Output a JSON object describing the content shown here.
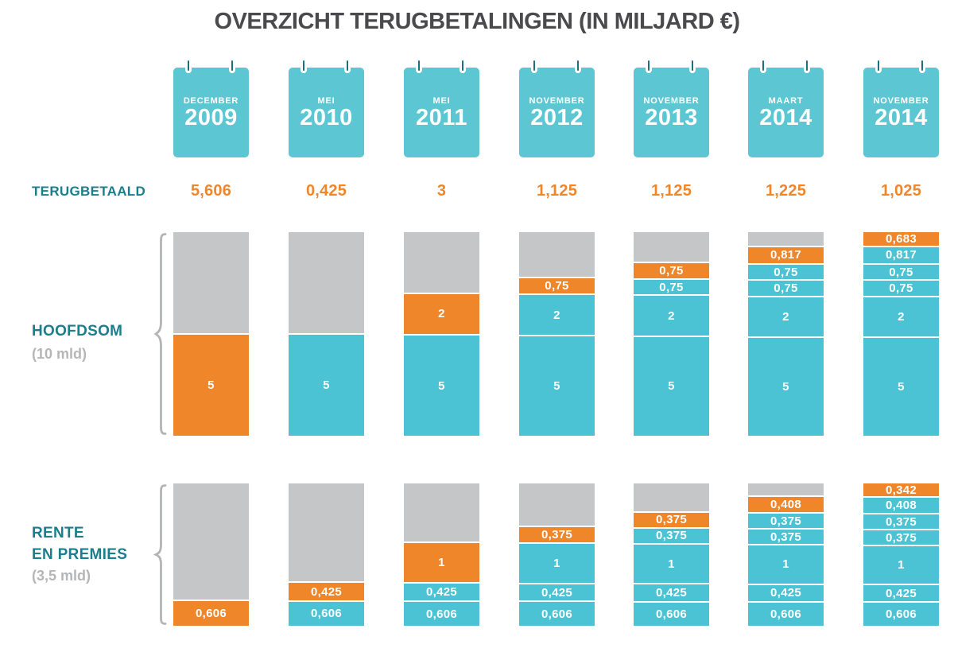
{
  "title": "OVERZICHT TERUGBETALINGEN (IN MILJARD €)",
  "labels": {
    "terugbetaald": "TERUGBETAALD",
    "hoofdsom": "HOOFDSOM",
    "hoofdsom_sub": "(10 mld)",
    "rente_line1": "RENTE",
    "rente_line2": "EN PREMIES",
    "rente_sub": "(3,5 mld)"
  },
  "colors": {
    "teal_bar": "#4bc3d5",
    "teal_calendar": "#5cc7d3",
    "teal_text": "#1b7e8e",
    "pin": "#19707f",
    "orange": "#f0862a",
    "gray_segment": "#c5c6c8",
    "gray_text": "#b5b6b8",
    "title_text": "#4a4a4c",
    "brace": "#b3b4b6"
  },
  "header": {
    "columns": [
      {
        "month": "DECEMBER",
        "year": "2009"
      },
      {
        "month": "MEI",
        "year": "2010"
      },
      {
        "month": "MEI",
        "year": "2011"
      },
      {
        "month": "NOVEMBER",
        "year": "2012"
      },
      {
        "month": "NOVEMBER",
        "year": "2013"
      },
      {
        "month": "MAART",
        "year": "2014"
      },
      {
        "month": "NOVEMBER",
        "year": "2014"
      }
    ]
  },
  "chart_data": [
    {
      "type": "bar",
      "title": "TERUGBETAALD (in miljard €)",
      "categories": [
        "DECEMBER 2009",
        "MEI 2010",
        "MEI 2011",
        "NOVEMBER 2012",
        "NOVEMBER 2013",
        "MAART 2014",
        "NOVEMBER 2014"
      ],
      "values": [
        5.606,
        0.425,
        3,
        1.125,
        1.125,
        1.225,
        1.025
      ],
      "values_text": [
        "5,606",
        "0,425",
        "3",
        "1,125",
        "1,125",
        "1,225",
        "1,025"
      ]
    },
    {
      "type": "bar",
      "stacked": true,
      "title": "HOOFDSOM (10 mld)",
      "total": 10,
      "ylim": [
        0,
        10
      ],
      "categories": [
        "DECEMBER 2009",
        "MEI 2010",
        "MEI 2011",
        "NOVEMBER 2012",
        "NOVEMBER 2013",
        "MAART 2014",
        "NOVEMBER 2014"
      ],
      "columns": [
        {
          "segments": [
            {
              "value": 5,
              "color": "gray",
              "label": ""
            },
            {
              "value": 5,
              "color": "orange",
              "label": "5"
            }
          ]
        },
        {
          "segments": [
            {
              "value": 5,
              "color": "gray",
              "label": ""
            },
            {
              "value": 5,
              "color": "teal",
              "label": "5"
            }
          ]
        },
        {
          "segments": [
            {
              "value": 3,
              "color": "gray",
              "label": ""
            },
            {
              "value": 2,
              "color": "orange",
              "label": "2"
            },
            {
              "value": 5,
              "color": "teal",
              "label": "5"
            }
          ]
        },
        {
          "segments": [
            {
              "value": 2.25,
              "color": "gray",
              "label": ""
            },
            {
              "value": 0.75,
              "color": "orange",
              "label": "0,75"
            },
            {
              "value": 2,
              "color": "teal",
              "label": "2"
            },
            {
              "value": 5,
              "color": "teal",
              "label": "5"
            }
          ]
        },
        {
          "segments": [
            {
              "value": 1.5,
              "color": "gray",
              "label": ""
            },
            {
              "value": 0.75,
              "color": "orange",
              "label": "0,75"
            },
            {
              "value": 0.75,
              "color": "teal",
              "label": "0,75"
            },
            {
              "value": 2,
              "color": "teal",
              "label": "2"
            },
            {
              "value": 5,
              "color": "teal",
              "label": "5"
            }
          ]
        },
        {
          "segments": [
            {
              "value": 0.683,
              "color": "gray",
              "label": ""
            },
            {
              "value": 0.817,
              "color": "orange",
              "label": "0,817"
            },
            {
              "value": 0.75,
              "color": "teal",
              "label": "0,75"
            },
            {
              "value": 0.75,
              "color": "teal",
              "label": "0,75"
            },
            {
              "value": 2,
              "color": "teal",
              "label": "2"
            },
            {
              "value": 5,
              "color": "teal",
              "label": "5"
            }
          ]
        },
        {
          "segments": [
            {
              "value": 0.683,
              "color": "orange",
              "label": "0,683"
            },
            {
              "value": 0.817,
              "color": "teal",
              "label": "0,817"
            },
            {
              "value": 0.75,
              "color": "teal",
              "label": "0,75"
            },
            {
              "value": 0.75,
              "color": "teal",
              "label": "0,75"
            },
            {
              "value": 2,
              "color": "teal",
              "label": "2"
            },
            {
              "value": 5,
              "color": "teal",
              "label": "5"
            }
          ]
        }
      ]
    },
    {
      "type": "bar",
      "stacked": true,
      "title": "RENTE EN PREMIES (3,5 mld)",
      "total": 3.5,
      "ylim": [
        0,
        3.5
      ],
      "categories": [
        "DECEMBER 2009",
        "MEI 2010",
        "MEI 2011",
        "NOVEMBER 2012",
        "NOVEMBER 2013",
        "MAART 2014",
        "NOVEMBER 2014"
      ],
      "columns": [
        {
          "segments": [
            {
              "value": 2.894,
              "color": "gray",
              "label": ""
            },
            {
              "value": 0.606,
              "color": "orange",
              "label": "0,606"
            }
          ]
        },
        {
          "segments": [
            {
              "value": 2.469,
              "color": "gray",
              "label": ""
            },
            {
              "value": 0.425,
              "color": "orange",
              "label": "0,425"
            },
            {
              "value": 0.606,
              "color": "teal",
              "label": "0,606"
            }
          ]
        },
        {
          "segments": [
            {
              "value": 1.469,
              "color": "gray",
              "label": ""
            },
            {
              "value": 1,
              "color": "orange",
              "label": "1"
            },
            {
              "value": 0.425,
              "color": "teal",
              "label": "0,425"
            },
            {
              "value": 0.606,
              "color": "teal",
              "label": "0,606"
            }
          ]
        },
        {
          "segments": [
            {
              "value": 1.094,
              "color": "gray",
              "label": ""
            },
            {
              "value": 0.375,
              "color": "orange",
              "label": "0,375"
            },
            {
              "value": 1,
              "color": "teal",
              "label": "1"
            },
            {
              "value": 0.425,
              "color": "teal",
              "label": "0,425"
            },
            {
              "value": 0.606,
              "color": "teal",
              "label": "0,606"
            }
          ]
        },
        {
          "segments": [
            {
              "value": 0.719,
              "color": "gray",
              "label": ""
            },
            {
              "value": 0.375,
              "color": "orange",
              "label": "0,375"
            },
            {
              "value": 0.375,
              "color": "teal",
              "label": "0,375"
            },
            {
              "value": 1,
              "color": "teal",
              "label": "1"
            },
            {
              "value": 0.425,
              "color": "teal",
              "label": "0,425"
            },
            {
              "value": 0.606,
              "color": "teal",
              "label": "0,606"
            }
          ]
        },
        {
          "segments": [
            {
              "value": 0.311,
              "color": "gray",
              "label": ""
            },
            {
              "value": 0.408,
              "color": "orange",
              "label": "0,408"
            },
            {
              "value": 0.375,
              "color": "teal",
              "label": "0,375"
            },
            {
              "value": 0.375,
              "color": "teal",
              "label": "0,375"
            },
            {
              "value": 1,
              "color": "teal",
              "label": "1"
            },
            {
              "value": 0.425,
              "color": "teal",
              "label": "0,425"
            },
            {
              "value": 0.606,
              "color": "teal",
              "label": "0,606"
            }
          ]
        },
        {
          "segments": [
            {
              "value": 0.342,
              "color": "orange",
              "label": "0,342"
            },
            {
              "value": 0.408,
              "color": "teal",
              "label": "0,408"
            },
            {
              "value": 0.375,
              "color": "teal",
              "label": "0,375"
            },
            {
              "value": 0.375,
              "color": "teal",
              "label": "0,375"
            },
            {
              "value": 1,
              "color": "teal",
              "label": "1"
            },
            {
              "value": 0.425,
              "color": "teal",
              "label": "0,425"
            },
            {
              "value": 0.606,
              "color": "teal",
              "label": "0,606"
            }
          ]
        }
      ]
    }
  ]
}
